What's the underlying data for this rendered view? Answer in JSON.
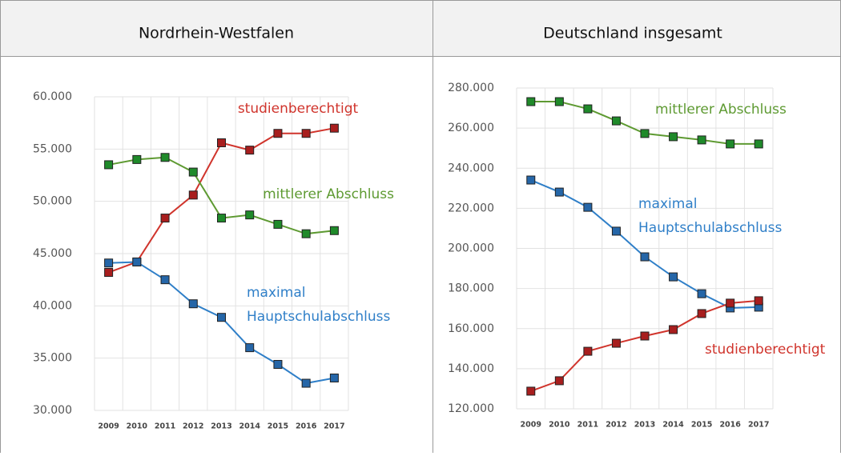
{
  "chart_data": [
    {
      "type": "line",
      "title": "Nordrhein-Westfalen",
      "categories": [
        "2009",
        "2010",
        "2011",
        "2012",
        "2013",
        "2014",
        "2015",
        "2016",
        "2017"
      ],
      "ylim": [
        30000,
        60000
      ],
      "yticks": [
        {
          "value": 30000,
          "label": "30.000"
        },
        {
          "value": 35000,
          "label": "35.000"
        },
        {
          "value": 40000,
          "label": "40.000"
        },
        {
          "value": 45000,
          "label": "45.000"
        },
        {
          "value": 50000,
          "label": "50.000"
        },
        {
          "value": 55000,
          "label": "55.000"
        },
        {
          "value": 60000,
          "label": "60.000"
        }
      ],
      "grid": true,
      "series": [
        {
          "name": "studienberechtigt",
          "color": "#d0342c",
          "values": [
            43200,
            44200,
            48400,
            50600,
            55600,
            54900,
            56500,
            56500,
            57000
          ]
        },
        {
          "name": "mittlerer Abschluss",
          "color": "#5e9a32",
          "values": [
            53500,
            54000,
            54200,
            52800,
            48400,
            48700,
            47800,
            46900,
            47200
          ]
        },
        {
          "name": "maximal Hauptschulabschluss",
          "color": "#2f7fc8",
          "values": [
            44100,
            44200,
            42500,
            40200,
            38900,
            36000,
            34400,
            32600,
            33100
          ]
        }
      ]
    },
    {
      "type": "line",
      "title": "Deutschland insgesamt",
      "categories": [
        "2009",
        "2010",
        "2011",
        "2012",
        "2013",
        "2014",
        "2015",
        "2016",
        "2017"
      ],
      "ylim": [
        120000,
        280000
      ],
      "yticks": [
        {
          "value": 120000,
          "label": "120.000"
        },
        {
          "value": 140000,
          "label": "140.000"
        },
        {
          "value": 160000,
          "label": "160.000"
        },
        {
          "value": 180000,
          "label": "180.000"
        },
        {
          "value": 200000,
          "label": "200.000"
        },
        {
          "value": 220000,
          "label": "220.000"
        },
        {
          "value": 240000,
          "label": "240.000"
        },
        {
          "value": 260000,
          "label": "260.000"
        },
        {
          "value": 280000,
          "label": "280.000"
        }
      ],
      "grid": true,
      "series": [
        {
          "name": "mittlerer Abschluss",
          "color": "#5e9a32",
          "values": [
            273200,
            273200,
            269600,
            263600,
            257300,
            255700,
            254100,
            252100,
            252100
          ]
        },
        {
          "name": "maximal Hauptschulabschluss",
          "color": "#2f7fc8",
          "values": [
            234100,
            228100,
            220500,
            208600,
            195800,
            185800,
            177400,
            170300,
            170700
          ]
        },
        {
          "name": "studienberechtigt",
          "color": "#d0342c",
          "values": [
            128800,
            134000,
            148700,
            152700,
            156300,
            159500,
            167500,
            172700,
            173900
          ]
        }
      ]
    }
  ]
}
